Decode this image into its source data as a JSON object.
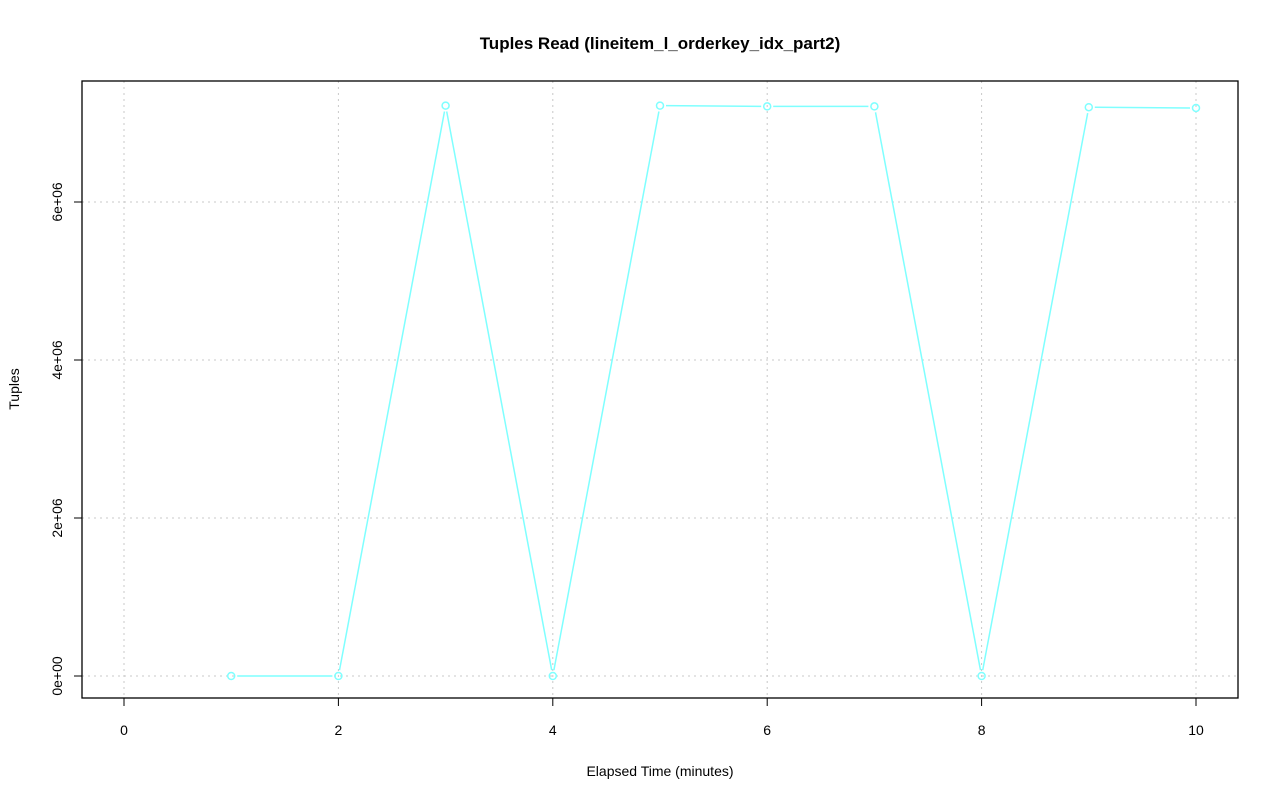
{
  "chart_data": {
    "type": "line",
    "title": "Tuples Read (lineitem_l_orderkey_idx_part2)",
    "xlabel": "Elapsed Time (minutes)",
    "ylabel": "Tuples",
    "xlim": [
      0,
      10
    ],
    "ylim": [
      0,
      7220000
    ],
    "x_ticks": [
      0,
      2,
      4,
      6,
      8,
      10
    ],
    "x_tick_labels": [
      "0",
      "2",
      "4",
      "6",
      "8",
      "10"
    ],
    "y_ticks": [
      0,
      2000000,
      4000000,
      6000000
    ],
    "y_tick_labels": [
      "0e+00",
      "2e+06",
      "4e+06",
      "6e+06"
    ],
    "grid": true,
    "series": [
      {
        "color": "#7fffff",
        "x": [
          1,
          2,
          3,
          4,
          5,
          6,
          7,
          8,
          9,
          10
        ],
        "y": [
          0,
          0,
          7220000,
          0,
          7220000,
          7210000,
          7210000,
          0,
          7200000,
          7190000
        ]
      }
    ]
  }
}
